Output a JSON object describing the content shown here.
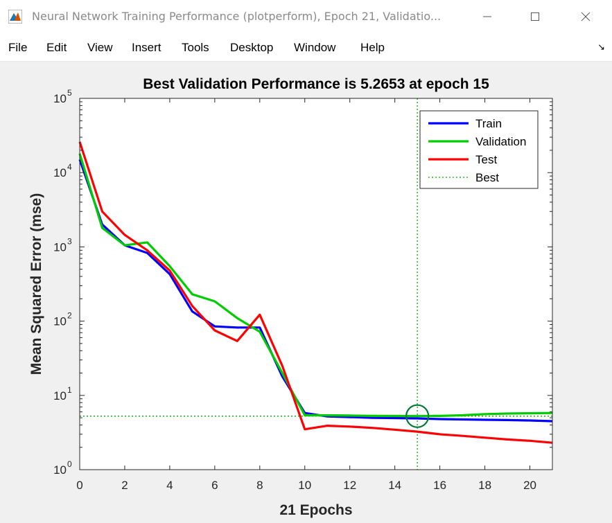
{
  "window": {
    "title": "Neural Network Training Performance (plotperform), Epoch 21, Validatio...",
    "app_icon": "matlab-icon",
    "controls": [
      "minimize-icon",
      "maximize-icon",
      "close-icon"
    ]
  },
  "menu": {
    "items": [
      "File",
      "Edit",
      "View",
      "Insert",
      "Tools",
      "Desktop",
      "Window",
      "Help"
    ],
    "dock_icon": "dock-arrow-icon"
  },
  "colors": {
    "train": "#0000ff",
    "validation": "#00cc00",
    "test": "#ff0000",
    "best": "#00aa00"
  },
  "chart_data": {
    "type": "line",
    "title": "Best Validation Performance is 5.2653 at epoch 15",
    "xlabel": "21 Epochs",
    "ylabel": "Mean Squared Error  (mse)",
    "xlim": [
      0,
      21
    ],
    "ylim": [
      1,
      100000
    ],
    "yscale": "log",
    "xticks": [
      "0",
      "2",
      "4",
      "6",
      "8",
      "10",
      "12",
      "14",
      "16",
      "18",
      "20"
    ],
    "yticks": [
      {
        "base": "10",
        "exp": "0"
      },
      {
        "base": "10",
        "exp": "1"
      },
      {
        "base": "10",
        "exp": "2"
      },
      {
        "base": "10",
        "exp": "3"
      },
      {
        "base": "10",
        "exp": "4"
      },
      {
        "base": "10",
        "exp": "5"
      }
    ],
    "grid": false,
    "legend_position": "top-right",
    "x": [
      0,
      1,
      2,
      3,
      4,
      5,
      6,
      7,
      8,
      9,
      10,
      11,
      12,
      13,
      14,
      15,
      16,
      17,
      18,
      19,
      20,
      21
    ],
    "series": [
      {
        "name": "Train",
        "values": [
          15000,
          2000,
          1050,
          830,
          430,
          135,
          85,
          82,
          82,
          18,
          5.8,
          5.2,
          5.1,
          5.0,
          4.95,
          4.9,
          4.8,
          4.75,
          4.7,
          4.65,
          4.6,
          4.5
        ]
      },
      {
        "name": "Validation",
        "values": [
          18000,
          1800,
          1050,
          1150,
          550,
          230,
          185,
          110,
          72,
          20,
          5.4,
          5.4,
          5.35,
          5.3,
          5.28,
          5.2653,
          5.3,
          5.4,
          5.6,
          5.7,
          5.75,
          5.8
        ]
      },
      {
        "name": "Test",
        "values": [
          26000,
          3000,
          1450,
          900,
          480,
          160,
          75,
          54,
          122,
          25,
          3.5,
          3.9,
          3.8,
          3.65,
          3.45,
          3.25,
          3.0,
          2.85,
          2.7,
          2.55,
          2.45,
          2.3
        ]
      }
    ],
    "best": {
      "name": "Best",
      "epoch": 15,
      "value": 5.2653
    }
  }
}
